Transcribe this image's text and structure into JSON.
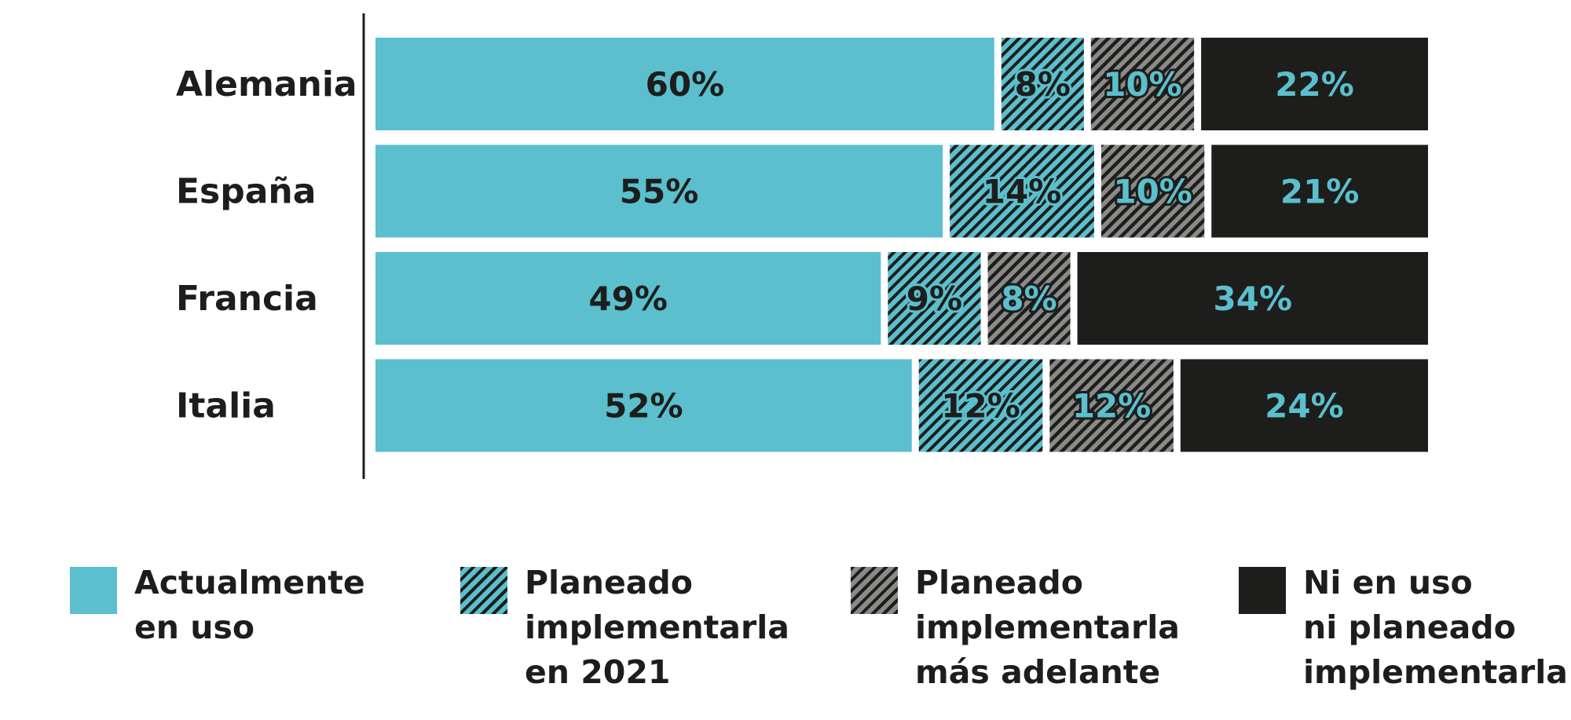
{
  "chart_data": {
    "type": "bar",
    "orientation": "horizontal",
    "stacked": true,
    "categories": [
      "Alemania",
      "España",
      "Francia",
      "Italia"
    ],
    "series": [
      {
        "name": "Actualmente en uso",
        "values": [
          60,
          55,
          49,
          52
        ],
        "labels": [
          "60%",
          "55%",
          "49%",
          "52%"
        ]
      },
      {
        "name": "Planeado implementarla en 2021",
        "values": [
          8,
          14,
          9,
          12
        ],
        "labels": [
          "8%",
          "14%",
          "9%",
          "12%"
        ]
      },
      {
        "name": "Planeado implementarla más adelante",
        "values": [
          10,
          10,
          8,
          12
        ],
        "labels": [
          "10%",
          "10%",
          "8%",
          "12%"
        ]
      },
      {
        "name": "Ni en uso ni planeado implementarla",
        "values": [
          22,
          21,
          34,
          24
        ],
        "labels": [
          "22%",
          "21%",
          "34%",
          "24%"
        ]
      }
    ],
    "xlim": [
      0,
      100
    ],
    "grid": false,
    "legend_position": "bottom",
    "colors": {
      "teal": "#5bbfcd",
      "black": "#1d1d1b",
      "grey_hatch": "#7a7a78",
      "label_dark": "#1d1d1b",
      "label_teal": "#5bbfcd"
    },
    "patterns": [
      "solid-teal",
      "hatched-teal",
      "hatched-grey",
      "solid-black"
    ]
  },
  "legend": [
    {
      "lines": [
        "Actualmente",
        "en uso"
      ],
      "pattern": "solid-teal"
    },
    {
      "lines": [
        "Planeado",
        "implementarla",
        "en 2021"
      ],
      "pattern": "hatched-teal"
    },
    {
      "lines": [
        "Planeado",
        "implementarla",
        "más adelante"
      ],
      "pattern": "hatched-grey"
    },
    {
      "lines": [
        "Ni en uso",
        "ni planeado",
        "implementarla"
      ],
      "pattern": "solid-black"
    }
  ]
}
